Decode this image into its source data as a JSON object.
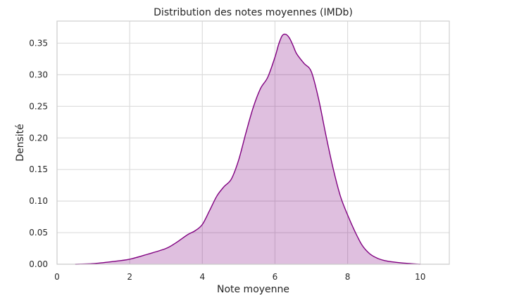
{
  "chart_data": {
    "type": "area",
    "title": "Distribution des notes moyennes (IMDb)",
    "xlabel": "Note moyenne",
    "ylabel": "Densité",
    "xlim": [
      0,
      10.8
    ],
    "ylim": [
      0,
      0.385
    ],
    "x_ticks": [
      0,
      2,
      4,
      6,
      8,
      10
    ],
    "y_ticks": [
      0.0,
      0.05,
      0.1,
      0.15,
      0.2,
      0.25,
      0.3,
      0.35
    ],
    "grid": true,
    "legend": "none",
    "colors": {
      "line": "#800080",
      "fill": "#800080",
      "fill_opacity": 0.25
    },
    "series": [
      {
        "x": [
          0.5,
          1.0,
          1.5,
          2.0,
          2.5,
          3.0,
          3.3,
          3.6,
          3.8,
          4.0,
          4.2,
          4.4,
          4.6,
          4.8,
          5.0,
          5.2,
          5.4,
          5.6,
          5.8,
          6.0,
          6.1,
          6.2,
          6.3,
          6.4,
          6.5,
          6.6,
          6.8,
          7.0,
          7.2,
          7.4,
          7.6,
          7.8,
          8.0,
          8.2,
          8.4,
          8.6,
          8.8,
          9.0,
          9.2,
          9.5,
          10.0
        ],
        "values": [
          0.0,
          0.001,
          0.004,
          0.008,
          0.016,
          0.025,
          0.035,
          0.047,
          0.053,
          0.063,
          0.085,
          0.108,
          0.123,
          0.135,
          0.165,
          0.208,
          0.248,
          0.278,
          0.296,
          0.328,
          0.348,
          0.362,
          0.364,
          0.358,
          0.346,
          0.333,
          0.318,
          0.305,
          0.262,
          0.205,
          0.152,
          0.108,
          0.078,
          0.052,
          0.03,
          0.017,
          0.01,
          0.006,
          0.004,
          0.002,
          0.0
        ]
      }
    ]
  }
}
